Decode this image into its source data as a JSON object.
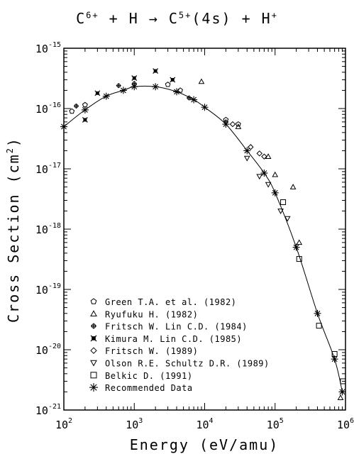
{
  "chart_data": {
    "type": "scatter",
    "title": {
      "parts": [
        "C",
        "6+",
        " + H → C",
        "5+",
        "(4s) + H",
        "+"
      ]
    },
    "xlabel": "Energy (eV/amu)",
    "ylabel": "Cross Section (cm",
    "ylabel_sup": "2",
    "ylabel_tail": ")",
    "x_scale": "log",
    "y_scale": "log",
    "xlim": [
      100,
      1000000
    ],
    "ylim": [
      1e-21,
      1e-15
    ],
    "grid": false,
    "legend_position": "bottom-left",
    "x_ticks": [
      {
        "value": 100,
        "base": "10",
        "exp": "2"
      },
      {
        "value": 1000,
        "base": "10",
        "exp": "3"
      },
      {
        "value": 10000,
        "base": "10",
        "exp": "4"
      },
      {
        "value": 100000,
        "base": "10",
        "exp": "5"
      },
      {
        "value": 1000000,
        "base": "10",
        "exp": "6"
      }
    ],
    "y_ticks": [
      {
        "value": 1e-21,
        "base": "10",
        "exp": "-21"
      },
      {
        "value": 1e-20,
        "base": "10",
        "exp": "-20"
      },
      {
        "value": 1e-19,
        "base": "10",
        "exp": "-19"
      },
      {
        "value": 1e-18,
        "base": "10",
        "exp": "-18"
      },
      {
        "value": 1e-17,
        "base": "10",
        "exp": "-17"
      },
      {
        "value": 1e-16,
        "base": "10",
        "exp": "-16"
      },
      {
        "value": 1e-15,
        "base": "10",
        "exp": "-15"
      }
    ],
    "series": [
      {
        "name": "Green T.A. et al. (1982)",
        "marker": "pentagon",
        "x": [
          130,
          200,
          3000,
          4500,
          20000,
          30000
        ],
        "y": [
          9e-17,
          1.15e-16,
          2.5e-16,
          2e-16,
          6.5e-17,
          5.5e-17
        ]
      },
      {
        "name": "Ryufuku H. (1982)",
        "marker": "triangle-up",
        "x": [
          9000,
          30000,
          80000,
          100000,
          180000,
          220000,
          850000
        ],
        "y": [
          2.8e-16,
          5e-17,
          1.6e-17,
          8e-18,
          5e-18,
          6e-19,
          1.6e-21
        ]
      },
      {
        "name": "Fritsch W. Lin C.D. (1984)",
        "marker": "plus-circle",
        "x": [
          150,
          600,
          1000,
          6000,
          20000
        ],
        "y": [
          1.1e-16,
          2.4e-16,
          2.6e-16,
          1.5e-16,
          6e-17
        ]
      },
      {
        "name": "Kimura M. Lin C.D. (1985)",
        "marker": "x-filled",
        "x": [
          200,
          300,
          1000,
          2000,
          3500
        ],
        "y": [
          6.5e-17,
          1.8e-16,
          3.2e-16,
          4.2e-16,
          3e-16
        ]
      },
      {
        "name": "Fritsch W. (1989)",
        "marker": "diamond",
        "x": [
          25000,
          45000,
          60000,
          70000
        ],
        "y": [
          5.5e-17,
          2.3e-17,
          1.8e-17,
          1.6e-17
        ]
      },
      {
        "name": "Olson R.E. Schultz D.R. (1989)",
        "marker": "triangle-down",
        "x": [
          40000,
          60000,
          80000,
          120000,
          150000
        ],
        "y": [
          1.5e-17,
          7.5e-18,
          5.5e-18,
          2e-18,
          1.5e-18
        ]
      },
      {
        "name": "Belkic D. (1991)",
        "marker": "square",
        "x": [
          130000,
          220000,
          420000,
          700000,
          920000
        ],
        "y": [
          2.8e-18,
          3.2e-19,
          2.5e-20,
          8.5e-21,
          3e-21
        ]
      },
      {
        "name": "Recommended Data",
        "marker": "asterisk",
        "line": true,
        "x": [
          100,
          200,
          400,
          700,
          1000,
          2000,
          4000,
          7000,
          10000,
          20000,
          40000,
          70000,
          100000,
          200000,
          400000,
          700000,
          900000
        ],
        "y": [
          5e-17,
          9.5e-17,
          1.6e-16,
          2e-16,
          2.3e-16,
          2.3e-16,
          1.9e-16,
          1.4e-16,
          1.05e-16,
          5.5e-17,
          2e-17,
          8.5e-18,
          4e-18,
          5e-19,
          4e-20,
          7e-21,
          2e-21
        ]
      }
    ]
  }
}
